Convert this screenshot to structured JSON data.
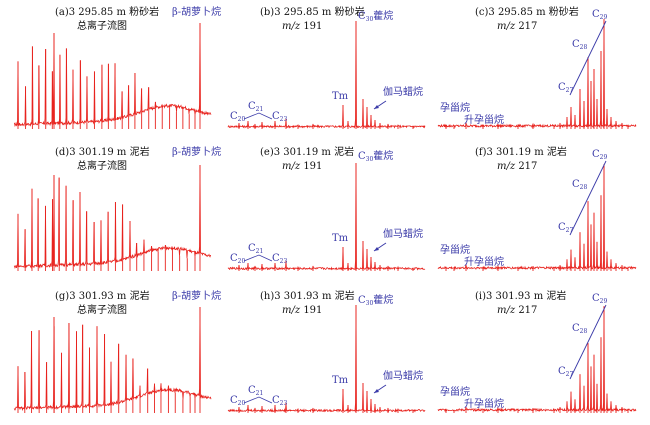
{
  "colors": {
    "trace": "#e8231e",
    "annotation": "#3a3aa8",
    "text": "#111111"
  },
  "chart_data": [
    {
      "id": "a",
      "type": "line",
      "title": "(a)3 295.85 m 粉砂岩",
      "subtitle": "总离子流图",
      "annotations": [
        {
          "text": "β-胡萝卜烷"
        }
      ]
    },
    {
      "id": "b",
      "type": "line",
      "title": "(b)3 295.85 m 粉砂岩",
      "subtitle": "m/z 191",
      "annotations": [
        {
          "text": "C20"
        },
        {
          "text": "C21"
        },
        {
          "text": "C23"
        },
        {
          "text": "Tm"
        },
        {
          "text": "C30藿烷"
        },
        {
          "text": "伽马蜡烷"
        }
      ]
    },
    {
      "id": "c",
      "type": "line",
      "title": "(c)3 295.85 m 粉砂岩",
      "subtitle": "m/z 217",
      "annotations": [
        {
          "text": "C29"
        },
        {
          "text": "C28"
        },
        {
          "text": "C27"
        },
        {
          "text": "孕甾烷"
        },
        {
          "text": "升孕甾烷"
        }
      ]
    },
    {
      "id": "d",
      "type": "line",
      "title": "(d)3 301.19 m 泥岩",
      "subtitle": "总离子流图",
      "annotations": [
        {
          "text": "β-胡萝卜烷"
        }
      ]
    },
    {
      "id": "e",
      "type": "line",
      "title": "(e)3 301.19 m 泥岩",
      "subtitle": "m/z 191",
      "annotations": [
        {
          "text": "C20"
        },
        {
          "text": "C21"
        },
        {
          "text": "C23"
        },
        {
          "text": "Tm"
        },
        {
          "text": "C30藿烷"
        },
        {
          "text": "伽马蜡烷"
        }
      ]
    },
    {
      "id": "f",
      "type": "line",
      "title": "(f)3 301.19 m 泥岩",
      "subtitle": "m/z 217",
      "annotations": [
        {
          "text": "C29"
        },
        {
          "text": "C28"
        },
        {
          "text": "C27"
        },
        {
          "text": "孕甾烷"
        },
        {
          "text": "升孕甾烷"
        }
      ]
    },
    {
      "id": "g",
      "type": "line",
      "title": "(g)3 301.93 m 泥岩",
      "subtitle": "总离子流图",
      "annotations": [
        {
          "text": "β-胡萝卜烷"
        }
      ]
    },
    {
      "id": "h",
      "type": "line",
      "title": "(h)3 301.93 m 泥岩",
      "subtitle": "m/z 191",
      "annotations": [
        {
          "text": "C20"
        },
        {
          "text": "C21"
        },
        {
          "text": "C23"
        },
        {
          "text": "Tm"
        },
        {
          "text": "C30藿烷"
        },
        {
          "text": "伽马蜡烷"
        }
      ]
    },
    {
      "id": "i",
      "type": "line",
      "title": "(i)3 301.93 m 泥岩",
      "subtitle": "m/z 217",
      "annotations": [
        {
          "text": "C29"
        },
        {
          "text": "C28"
        },
        {
          "text": "C27"
        },
        {
          "text": "孕甾烷"
        },
        {
          "text": "升孕甾烷"
        }
      ]
    }
  ]
}
